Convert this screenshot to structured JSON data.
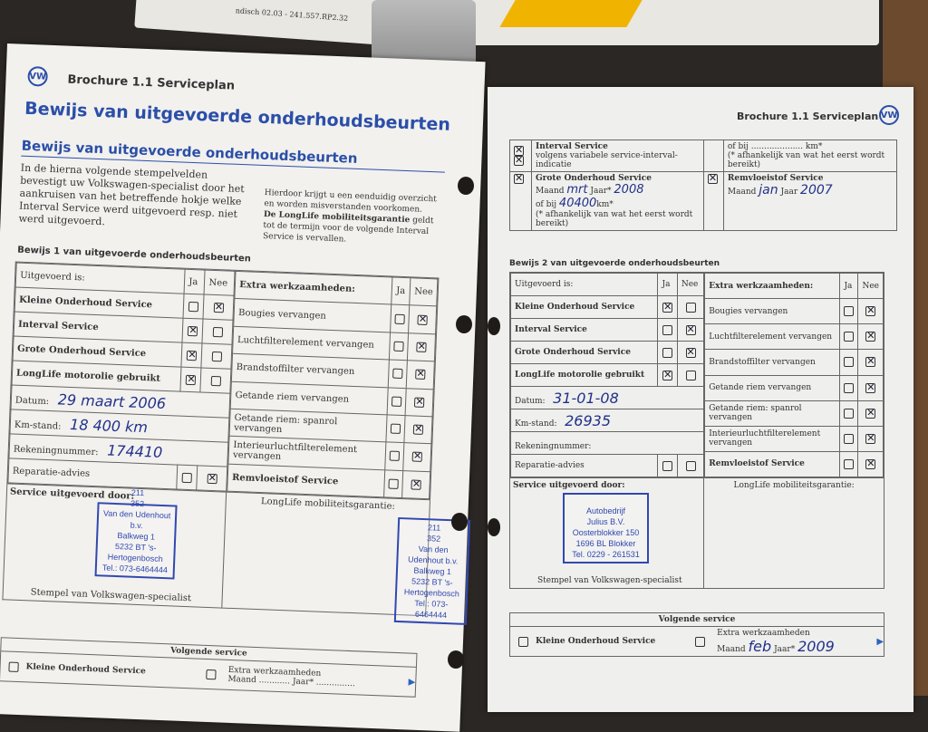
{
  "background": {
    "booklet_print": "ndisch 02.03 - 241.557.RP2.32"
  },
  "left_page": {
    "header": "Brochure 1.1 Serviceplan",
    "title": "Bewijs van uitgevoerde onderhoudsbeurten",
    "subtitle": "Bewijs van uitgevoerde onderhoudsbeurten",
    "intro_left": "In de hierna volgende stempelvelden bevestigt uw Volkswagen-specialist door het aankruisen van het betreffende hokje welke Interval Service werd uitgevoerd resp. niet werd uitgevoerd.",
    "intro_right_1": "Hierdoor krijgt u een eenduidig overzicht en worden misverstanden voorkomen.",
    "intro_right_2_bold": "De LongLife mobiliteitsgarantie",
    "intro_right_2": " geldt tot de termijn voor de volgende Interval Service is vervallen.",
    "section": "Bewijs 1 van uitgevoerde onderhoudsbeurten",
    "proof": {
      "col1": "Uitgevoerd is:",
      "ja": "Ja",
      "nee": "Nee",
      "col2": "Extra werkzaamheden:",
      "services": [
        {
          "label": "Kleine Onderhoud Service",
          "ja": false,
          "nee": true
        },
        {
          "label": "Interval Service",
          "ja": true,
          "nee": false
        },
        {
          "label": "Grote Onderhoud Service",
          "ja": true,
          "nee": false
        },
        {
          "label": "LongLife motorolie gebruikt",
          "ja": true,
          "nee": false
        }
      ],
      "datum_label": "Datum:",
      "datum": "29 maart 2006",
      "km_label": "Km-stand:",
      "km": "18 400 km",
      "rekening_label": "Rekeningnummer:",
      "rekening": "174410",
      "reparatie": {
        "label": "Reparatie-advies",
        "ja": false,
        "nee": true
      },
      "extras": [
        {
          "label": "Bougies vervangen",
          "ja": false,
          "nee": true
        },
        {
          "label": "Luchtfilterelement vervangen",
          "ja": false,
          "nee": true
        },
        {
          "label": "Brandstoffilter vervangen",
          "ja": false,
          "nee": true
        },
        {
          "label": "Getande riem vervangen",
          "ja": false,
          "nee": true
        },
        {
          "label": "Getande riem: spanrol vervangen",
          "ja": false,
          "nee": true
        },
        {
          "label": "Interieurluchtfilterelement vervangen",
          "ja": false,
          "nee": true
        },
        {
          "label": "Remvloeistof Service",
          "ja": false,
          "nee": true
        }
      ],
      "service_by": "Service uitgevoerd door:",
      "longlife": "LongLife mobiliteitsgarantie:",
      "stamp_caption": "Stempel van Volkswagen-specialist",
      "stamp": [
        "211",
        "352",
        "Van den Udenhout b.v.",
        "Balkweg 1",
        "5232 BT 's-Hertogenbosch",
        "Tel.: 073-6464444"
      ]
    },
    "next": {
      "title": "Volgende service",
      "kleine": "Kleine Onderhoud Service",
      "extra": "Extra werkzaamheden",
      "maand": "Maand ............ Jaar* ..............."
    }
  },
  "right_page": {
    "header": "Brochure 1.1 Serviceplan",
    "top": {
      "interval_title": "Interval Service",
      "interval_sub": "volgens variabele service-interval-indicatie",
      "interval_km": "of bij .................... km*",
      "interval_note": "(* afhankelijk van wat het eerst wordt bereikt)",
      "grote_title": "Grote Onderhoud Service",
      "grote_maand": "Maand",
      "grote_maand_val": "mrt",
      "grote_jaar": "Jaar*",
      "grote_jaar_val": "2008",
      "grote_km": "of bij",
      "grote_km_val": "40400",
      "grote_km_unit": "km*",
      "grote_note": "(* afhankelijk van wat het eerst wordt bereikt)",
      "rem_title": "Remvloeistof Service",
      "rem_maand": "Maand",
      "rem_maand_val": "jan",
      "rem_jaar": "Jaar",
      "rem_jaar_val": "2007"
    },
    "section": "Bewijs 2 van uitgevoerde onderhoudsbeurten",
    "proof": {
      "col1": "Uitgevoerd is:",
      "ja": "Ja",
      "nee": "Nee",
      "col2": "Extra werkzaamheden:",
      "services": [
        {
          "label": "Kleine Onderhoud Service",
          "ja": true,
          "nee": false
        },
        {
          "label": "Interval Service",
          "ja": false,
          "nee": true
        },
        {
          "label": "Grote Onderhoud Service",
          "ja": false,
          "nee": true
        },
        {
          "label": "LongLife motorolie gebruikt",
          "ja": true,
          "nee": false
        }
      ],
      "datum_label": "Datum:",
      "datum": "31-01-08",
      "km_label": "Km-stand:",
      "km": "26935",
      "rekening_label": "Rekeningnummer:",
      "rekening": "",
      "reparatie": {
        "label": "Reparatie-advies",
        "ja": false,
        "nee": false
      },
      "extras": [
        {
          "label": "Bougies vervangen",
          "ja": false,
          "nee": true
        },
        {
          "label": "Luchtfilterelement vervangen",
          "ja": false,
          "nee": true
        },
        {
          "label": "Brandstoffilter vervangen",
          "ja": false,
          "nee": true
        },
        {
          "label": "Getande riem vervangen",
          "ja": false,
          "nee": true
        },
        {
          "label": "Getande riem: spanrol vervangen",
          "ja": false,
          "nee": true
        },
        {
          "label": "Interieurluchtfilterelement vervangen",
          "ja": false,
          "nee": true
        },
        {
          "label": "Remvloeistof Service",
          "ja": false,
          "nee": true
        }
      ],
      "service_by": "Service uitgevoerd door:",
      "longlife": "LongLife mobiliteitsgarantie:",
      "stamp_caption": "Stempel van Volkswagen-specialist",
      "stamp": [
        "Autobedrijf",
        "Julius B.V.",
        "Oosterblokker 150",
        "1696 BL Blokker",
        "Tel. 0229 - 261531"
      ]
    },
    "next": {
      "title": "Volgende service",
      "kleine": "Kleine Onderhoud Service",
      "extra": "Extra werkzaamheden",
      "maand": "Maand",
      "maand_val": "feb",
      "jaar": "Jaar*",
      "jaar_val": "2009"
    }
  }
}
